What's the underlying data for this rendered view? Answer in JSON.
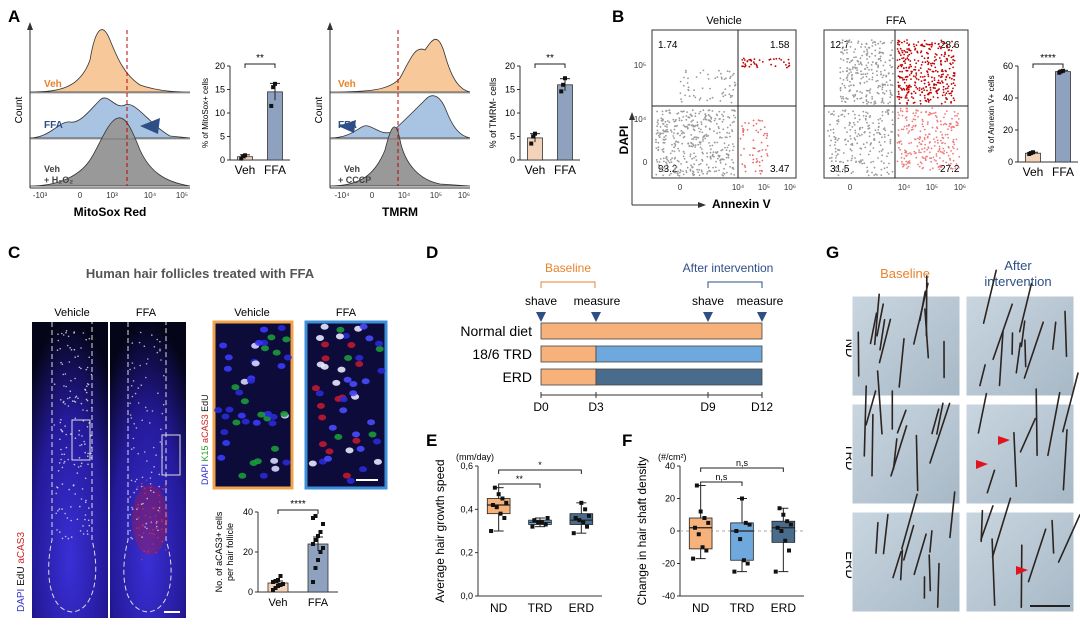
{
  "panels": {
    "A": "A",
    "B": "B",
    "C": "C",
    "D": "D",
    "E": "E",
    "F": "F",
    "G": "G"
  },
  "colors": {
    "veh": "#f6c89a",
    "ffa": "#a9c4e2",
    "gray": "#8a8a8a",
    "ffa_bar": "#8ea2bf",
    "veh_bar": "#f2d2b8",
    "red": "#c00000",
    "orange_text": "#e8832c",
    "blue_text": "#2e4f86",
    "trd": "#6fa8dc",
    "erd": "#4a6c8c"
  },
  "panelA": {
    "mitosox": {
      "xlabel": "MitoSox Red",
      "ylabel": "Count",
      "ticks": [
        "-10³",
        "0",
        "10³",
        "10⁴",
        "10⁵"
      ],
      "rows": [
        {
          "label": "Veh"
        },
        {
          "label": "FFA"
        },
        {
          "label": "Veh",
          "label2": "+ H₂O₂"
        }
      ]
    },
    "tmrm": {
      "xlabel": "TMRM",
      "ylabel": "Count",
      "ticks": [
        "-10⁴",
        "0",
        "10⁴",
        "10⁵",
        "10⁶"
      ],
      "rows": [
        {
          "label": "Veh"
        },
        {
          "label": "FFA"
        },
        {
          "label": "Veh",
          "label2": "+ CCCP"
        }
      ]
    }
  },
  "panelB": {
    "vehicle": {
      "title": "Vehicle",
      "quadrants": {
        "ul": "1.74",
        "ur": "1.58",
        "ll": "93.2",
        "lr": "3.47"
      }
    },
    "ffa": {
      "title": "FFA",
      "quadrants": {
        "ul": "12.7",
        "ur": "28.6",
        "ll": "31.5",
        "lr": "27.2"
      }
    },
    "xlabel": "Annexin V",
    "ylabel": "DAPI",
    "xticks": [
      "0",
      "10⁴",
      "10⁵",
      "10⁶"
    ],
    "yticks": [
      "10⁵",
      "10⁴",
      "0"
    ]
  },
  "panelC": {
    "title": "Human hair follicles treated with FFA",
    "left_labels": [
      "Vehicle",
      "FFA"
    ],
    "stain_vertical": [
      "DAPI",
      "EdU",
      "aCAS3"
    ],
    "inset_labels": [
      "Vehicle",
      "FFA"
    ],
    "inset_stain": [
      "DAPI",
      "K15",
      "aCAS3",
      "EdU"
    ]
  },
  "panelD": {
    "baseline": "Baseline",
    "after": "After intervention",
    "events": [
      "shave",
      "measure",
      "shave",
      "measure"
    ],
    "rows": [
      "Normal diet",
      "18/6 TRD",
      "ERD"
    ],
    "days": [
      "D0",
      "D3",
      "D9",
      "D12"
    ]
  },
  "panelG": {
    "baseline": "Baseline",
    "after": "After",
    "after2": "intervention",
    "rows": [
      "ND",
      "TRD",
      "ERD"
    ]
  },
  "chart_data": [
    {
      "id": "A-mitosox-bar",
      "type": "bar",
      "categories": [
        "Veh",
        "FFA"
      ],
      "values": [
        0.7,
        14.5
      ],
      "errors": [
        0.4,
        1.8
      ],
      "points": [
        [
          0.3,
          0.8,
          1.0
        ],
        [
          11.5,
          15.5,
          16.2
        ]
      ],
      "title": "",
      "xlabel": "",
      "ylabel": "% of MitoSox+ cells",
      "ylim": [
        0,
        20
      ],
      "yticks": [
        0,
        5,
        10,
        15,
        20
      ],
      "significance": [
        "**"
      ]
    },
    {
      "id": "A-tmrm-bar",
      "type": "bar",
      "categories": [
        "Veh",
        "FFA"
      ],
      "values": [
        4.7,
        16
      ],
      "errors": [
        0.9,
        1.3
      ],
      "points": [
        [
          3.5,
          5.0,
          5.6
        ],
        [
          14.6,
          16.0,
          17.4
        ]
      ],
      "title": "",
      "xlabel": "",
      "ylabel": "% of TMRM- cells",
      "ylim": [
        0,
        20
      ],
      "yticks": [
        0,
        5,
        10,
        15,
        20
      ],
      "significance": [
        "**"
      ]
    },
    {
      "id": "B-annexin-bar",
      "type": "bar",
      "categories": [
        "Veh",
        "FFA"
      ],
      "values": [
        5.5,
        56.5
      ],
      "errors": [
        0.6,
        0.8
      ],
      "points": [
        [
          5.0,
          5.6,
          6.1
        ],
        [
          55.8,
          56.6,
          57.0
        ]
      ],
      "title": "",
      "xlabel": "",
      "ylabel": "% of Annexin V+ cells",
      "ylim": [
        0,
        60
      ],
      "yticks": [
        0,
        20,
        40,
        60
      ],
      "significance": [
        "****"
      ]
    },
    {
      "id": "C-acas3-bar",
      "type": "bar",
      "categories": [
        "Veh",
        "FFA"
      ],
      "values": [
        4.5,
        24
      ],
      "errors": [
        1.0,
        3.5
      ],
      "points": [
        [
          1,
          2,
          3,
          3.5,
          4,
          5,
          5.5,
          6,
          8
        ],
        [
          5,
          12,
          16,
          20,
          22,
          24,
          26,
          28,
          30,
          34,
          37,
          38
        ]
      ],
      "title": "",
      "xlabel": "",
      "ylabel": "No. of aCAS3+ cells per hair follicle",
      "ylim": [
        0,
        40
      ],
      "yticks": [
        0,
        20,
        40
      ],
      "significance": [
        "****"
      ]
    },
    {
      "id": "E-growth-box",
      "type": "box",
      "categories": [
        "ND",
        "TRD",
        "ERD"
      ],
      "boxes": [
        {
          "min": 0.3,
          "q1": 0.38,
          "median": 0.42,
          "q3": 0.45,
          "max": 0.5
        },
        {
          "min": 0.32,
          "q1": 0.33,
          "median": 0.34,
          "q3": 0.35,
          "max": 0.36
        },
        {
          "min": 0.29,
          "q1": 0.33,
          "median": 0.35,
          "q3": 0.38,
          "max": 0.43
        }
      ],
      "points": [
        [
          0.3,
          0.36,
          0.38,
          0.41,
          0.42,
          0.43,
          0.45,
          0.47,
          0.5
        ],
        [
          0.32,
          0.33,
          0.34,
          0.34,
          0.35,
          0.36
        ],
        [
          0.29,
          0.32,
          0.34,
          0.35,
          0.36,
          0.37,
          0.4,
          0.43
        ]
      ],
      "title": "",
      "xlabel": "",
      "ylabel": "Average hair growth speed",
      "unit": "(mm/day)",
      "ylim": [
        0,
        0.6
      ],
      "yticks": [
        "0,0",
        "0,2",
        "0,4",
        "0,6"
      ],
      "significance": [
        "**",
        "*"
      ]
    },
    {
      "id": "F-density-box",
      "type": "box",
      "categories": [
        "ND",
        "TRD",
        "ERD"
      ],
      "boxes": [
        {
          "min": -17,
          "q1": -11,
          "median": 2,
          "q3": 8,
          "max": 28
        },
        {
          "min": -25,
          "q1": -18,
          "median": 0,
          "q3": 5,
          "max": 20
        },
        {
          "min": -25,
          "q1": -7,
          "median": 2,
          "q3": 6,
          "max": 14
        }
      ],
      "points": [
        [
          -17,
          -12,
          -10,
          -2,
          2,
          5,
          8,
          12,
          28
        ],
        [
          -25,
          -20,
          -18,
          -5,
          0,
          4,
          5,
          20
        ],
        [
          -25,
          -12,
          -6,
          0,
          2,
          4,
          6,
          10,
          14
        ]
      ],
      "title": "",
      "xlabel": "",
      "ylabel": "Change in hair shaft density",
      "unit": "(#/cm²)",
      "ylim": [
        -40,
        40
      ],
      "yticks": [
        "-40",
        "-20",
        "0",
        "20",
        "40"
      ],
      "significance": [
        "n,s",
        "n,s"
      ]
    }
  ]
}
